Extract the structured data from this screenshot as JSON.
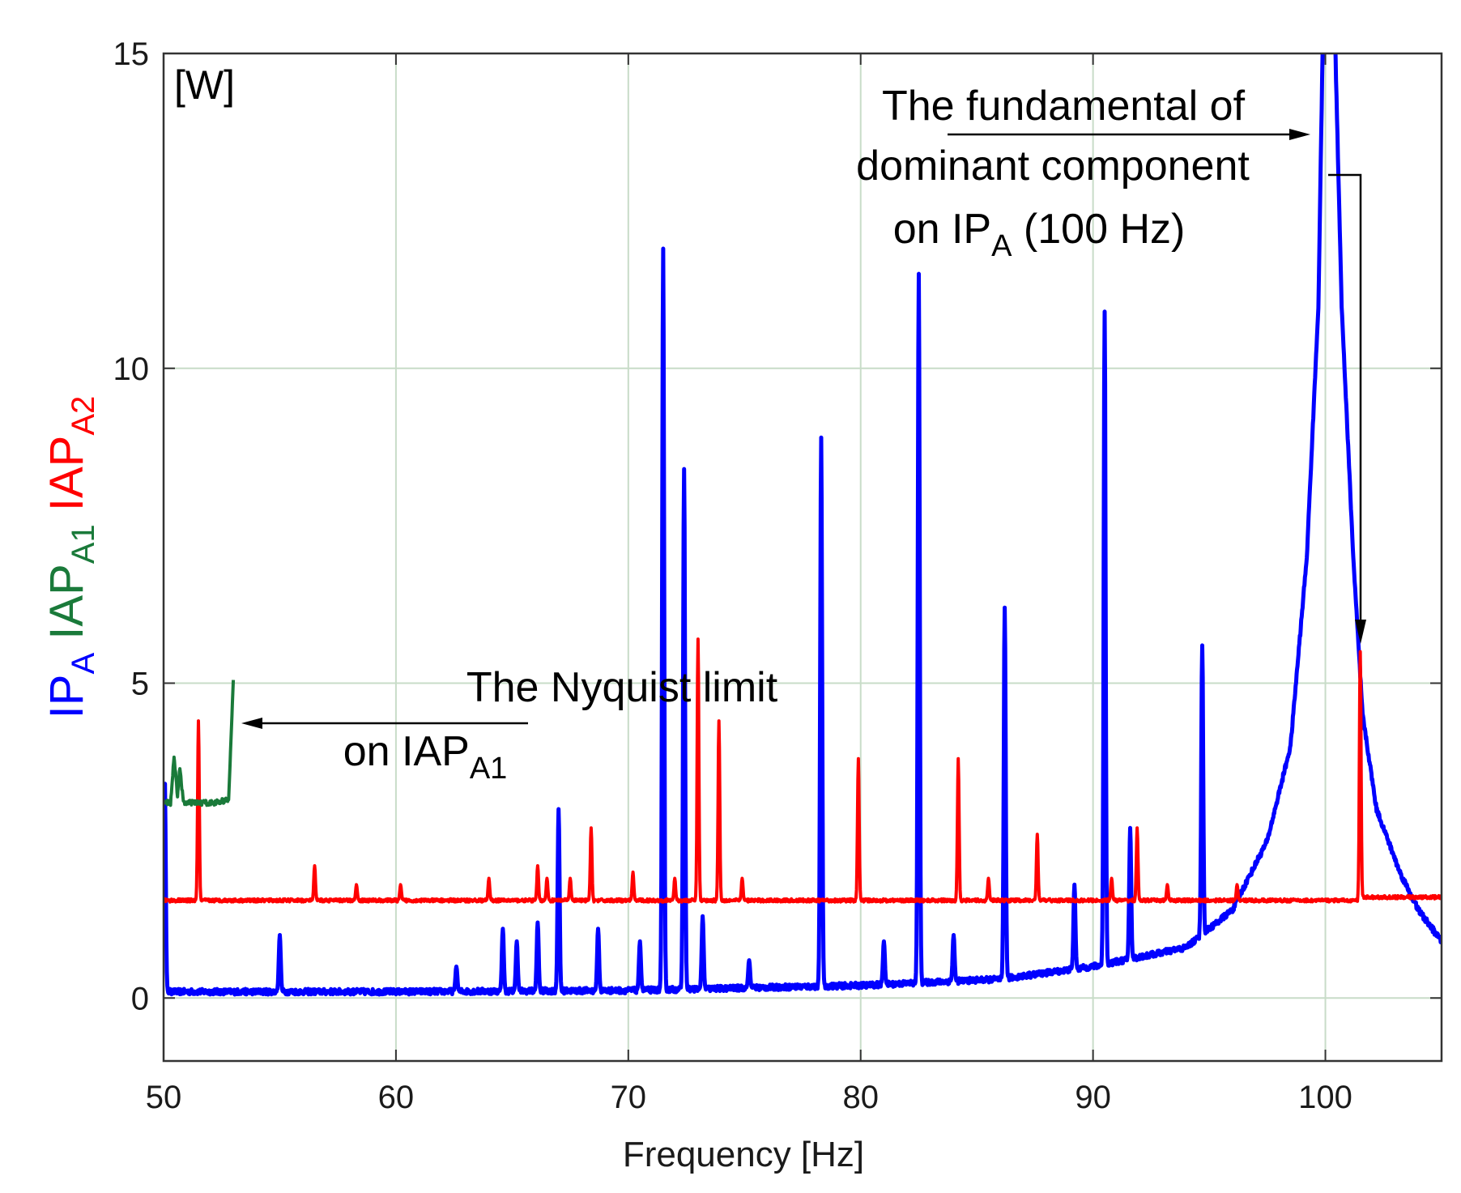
{
  "chart_data": {
    "type": "line",
    "title": "",
    "xlabel": "Frequency [Hz]",
    "ylabel_parts": [
      {
        "base": "IP",
        "sub": "A",
        "color": "#0000ff"
      },
      {
        "base": "IAP",
        "sub": "A1",
        "color": "#1a7a3a"
      },
      {
        "base": "IAP",
        "sub": "A2",
        "color": "#ff0000"
      }
    ],
    "unit_label": "[W]",
    "xlim": [
      50,
      105
    ],
    "ylim": [
      -1,
      15
    ],
    "xticks": [
      50,
      60,
      70,
      80,
      90,
      100
    ],
    "yticks": [
      0,
      5,
      10,
      15
    ],
    "grid": true,
    "series": [
      {
        "name": "IPA",
        "color": "#0000ff",
        "baseline": [
          [
            50,
            0.1
          ],
          [
            60,
            0.1
          ],
          [
            70,
            0.12
          ],
          [
            80,
            0.2
          ],
          [
            86,
            0.3
          ],
          [
            90,
            0.5
          ],
          [
            94,
            0.8
          ],
          [
            96,
            1.4
          ],
          [
            97.5,
            2.5
          ],
          [
            98.5,
            4.0
          ],
          [
            99.2,
            7.0
          ],
          [
            99.7,
            11.0
          ],
          [
            99.9,
            15.5
          ],
          [
            100.4,
            15.5
          ],
          [
            100.7,
            11.0
          ],
          [
            101.2,
            7.0
          ],
          [
            101.6,
            4.5
          ],
          [
            102.2,
            3.0
          ],
          [
            103.2,
            2.0
          ],
          [
            104,
            1.4
          ],
          [
            105,
            0.9
          ]
        ],
        "peaks": [
          [
            50.05,
            3.5
          ],
          [
            55,
            1.0
          ],
          [
            62.6,
            0.5
          ],
          [
            64.6,
            1.1
          ],
          [
            65.2,
            0.9
          ],
          [
            66.1,
            1.2
          ],
          [
            67,
            3.0
          ],
          [
            68.7,
            1.1
          ],
          [
            70.5,
            0.9
          ],
          [
            71.5,
            11.9
          ],
          [
            72.4,
            8.4
          ],
          [
            73.2,
            1.3
          ],
          [
            75.2,
            0.6
          ],
          [
            78.3,
            8.9
          ],
          [
            81,
            0.9
          ],
          [
            82.5,
            11.5
          ],
          [
            84,
            1.0
          ],
          [
            86.2,
            6.2
          ],
          [
            89.2,
            1.8
          ],
          [
            90.5,
            10.9
          ],
          [
            91.6,
            2.7
          ],
          [
            94.7,
            5.6
          ]
        ]
      },
      {
        "name": "IAPA1",
        "color": "#1a7a3a",
        "points": [
          [
            50,
            3.1
          ],
          [
            50.3,
            3.1
          ],
          [
            50.45,
            3.85
          ],
          [
            50.6,
            3.2
          ],
          [
            50.7,
            3.65
          ],
          [
            50.85,
            3.1
          ],
          [
            51.5,
            3.1
          ],
          [
            52.2,
            3.1
          ],
          [
            52.8,
            3.15
          ],
          [
            53,
            5.05
          ]
        ]
      },
      {
        "name": "IAPA2",
        "color": "#ff0000",
        "baseline": [
          [
            50,
            1.55
          ],
          [
            101.4,
            1.55
          ],
          [
            101.6,
            1.6
          ],
          [
            105,
            1.6
          ]
        ],
        "peaks": [
          [
            51.5,
            4.4
          ],
          [
            56.5,
            2.1
          ],
          [
            58.3,
            1.8
          ],
          [
            60.2,
            1.8
          ],
          [
            64,
            1.9
          ],
          [
            66.1,
            2.1
          ],
          [
            66.5,
            1.9
          ],
          [
            67.5,
            1.9
          ],
          [
            68.4,
            2.7
          ],
          [
            70.2,
            2.0
          ],
          [
            72,
            1.9
          ],
          [
            73,
            5.7
          ],
          [
            73.9,
            4.4
          ],
          [
            74.9,
            1.9
          ],
          [
            79.9,
            3.8
          ],
          [
            84.2,
            3.8
          ],
          [
            85.5,
            1.9
          ],
          [
            87.6,
            2.6
          ],
          [
            90.8,
            1.9
          ],
          [
            91.9,
            2.7
          ],
          [
            93.2,
            1.8
          ],
          [
            96.2,
            1.8
          ],
          [
            101.5,
            5.5
          ]
        ]
      }
    ],
    "annotations": [
      {
        "text_lines": [
          "The fundamental of",
          "dominant component"
        ],
        "line3_prefix": "on IP",
        "line3_sub": "A",
        "line3_suffix": " (100 Hz)"
      },
      {
        "text_lines": [
          "The Nyquist limit"
        ],
        "line2_prefix": "on IAP",
        "line2_sub": "A1"
      }
    ]
  }
}
